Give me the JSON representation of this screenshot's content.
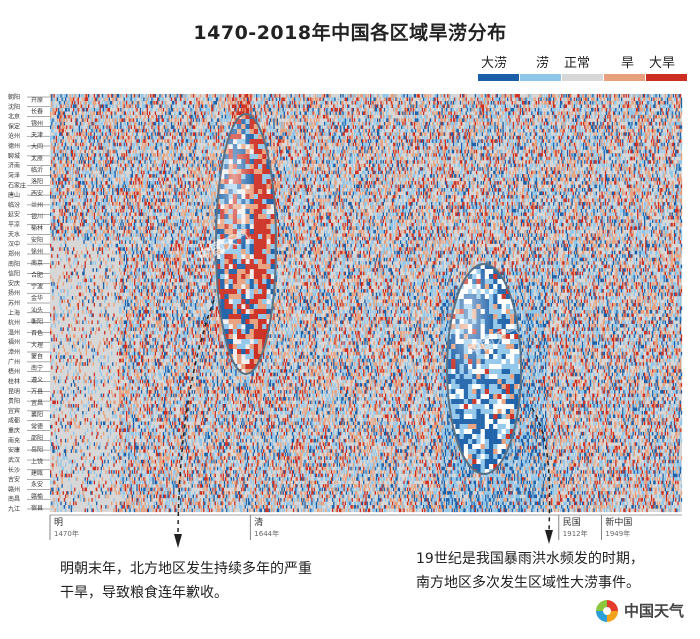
{
  "chart_data": {
    "type": "heatmap",
    "title": "1470-2018年中国各区域旱涝分布",
    "x": {
      "start": 1470,
      "end": 2018
    },
    "legend": [
      {
        "label": "大涝",
        "color": "#1a5fa8"
      },
      {
        "label": "涝",
        "color": "#8fc6ea"
      },
      {
        "label": "正常",
        "color": "#d7d7d7"
      },
      {
        "label": "旱",
        "color": "#e8a07c"
      },
      {
        "label": "大旱",
        "color": "#cc2e22"
      }
    ],
    "eras": [
      {
        "name": "明",
        "year": "1470年",
        "start": 1470
      },
      {
        "name": "清",
        "year": "1644年",
        "start": 1644
      },
      {
        "name": "民国",
        "year": "1912年",
        "start": 1912
      },
      {
        "name": "新中国",
        "year": "1949年",
        "start": 1949
      }
    ],
    "regions_col1": [
      "朝阳",
      "沈阳",
      "北京",
      "保定",
      "沧州",
      "德州",
      "聊城",
      "济南",
      "菏泽",
      "石家庄",
      "唐山",
      "临汾",
      "延安",
      "平凉",
      "天水",
      "汉中",
      "郑州",
      "南阳",
      "信阳",
      "安庆",
      "扬州",
      "苏州",
      "上海",
      "杭州",
      "温州",
      "福州",
      "漳州",
      "广州",
      "梧州",
      "桂林",
      "昆明",
      "贵阳",
      "宜宾",
      "成都",
      "重庆",
      "南充",
      "安康",
      "武汉",
      "长沙",
      "吉安",
      "赣州",
      "南昌",
      "九江"
    ],
    "regions_col2": [
      "开原",
      "长春",
      "锦州",
      "天津",
      "大同",
      "太原",
      "临沂",
      "洛阳",
      "西安",
      "兰州",
      "银川",
      "榆林",
      "安阳",
      "徐州",
      "南京",
      "合肥",
      "宁波",
      "金华",
      "汕头",
      "衡阳",
      "百色",
      "大理",
      "蒙自",
      "南宁",
      "遵义",
      "万县",
      "宜昌",
      "襄阳",
      "常德",
      "邵阳",
      "岳阳",
      "上饶",
      "建瓯",
      "永安",
      "赣榆",
      "宿县"
    ],
    "north_drought": {
      "start": 1628,
      "end": 1644
    },
    "south_floods": {
      "start": 1810,
      "end": 1900
    }
  },
  "annotations": {
    "left_line1": "明朝末年，北方地区发生持续多年的严重",
    "left_line2": "干旱，导致粮食连年歉收。",
    "right_line1": "19世纪是我国暴雨洪水频发的时期，",
    "right_line2": "南方地区多次发生区域性大涝事件。"
  },
  "brand": {
    "logo_text": "中国天气",
    "watermark": "中国天气"
  }
}
